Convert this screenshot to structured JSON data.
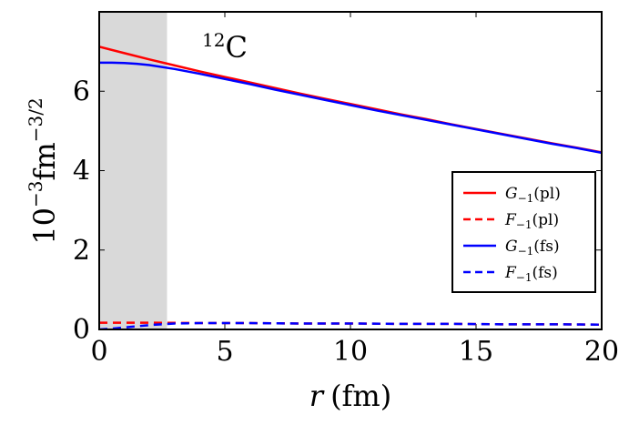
{
  "chart_data": {
    "type": "line",
    "annotation": "12C",
    "annotation_sup": "12",
    "annotation_base": "C",
    "xlabel": "r (fm)",
    "xlabel_var": "r",
    "xlabel_unit": "(fm)",
    "ylabel": "10^-3 fm^-3/2",
    "xlim": [
      0,
      20
    ],
    "ylim": [
      0,
      8
    ],
    "xticks": [
      0,
      5,
      10,
      15,
      20
    ],
    "xtick_labels": [
      "0",
      "5",
      "10",
      "15",
      "20"
    ],
    "yticks": [
      0,
      2,
      4,
      6
    ],
    "ytick_labels": [
      "0",
      "2",
      "4",
      "6"
    ],
    "shaded_region": {
      "x_from": 0,
      "x_to": 2.7,
      "color": "#d9d9d9"
    },
    "legend_position": "right",
    "series": [
      {
        "name": "G_{-1}(pl)",
        "legend_main": "G",
        "legend_sub": "−1",
        "legend_tail": "(pl)",
        "color": "#ff0000",
        "dash": "solid",
        "x": [
          0,
          1,
          2,
          3,
          4,
          5,
          6,
          7,
          8,
          9,
          10,
          11,
          12,
          13,
          14,
          15,
          16,
          17,
          18,
          19,
          20
        ],
        "y": [
          7.12,
          6.96,
          6.8,
          6.65,
          6.5,
          6.36,
          6.22,
          6.08,
          5.94,
          5.81,
          5.68,
          5.55,
          5.42,
          5.3,
          5.17,
          5.05,
          4.93,
          4.81,
          4.69,
          4.58,
          4.46
        ]
      },
      {
        "name": "F_{-1}(pl)",
        "legend_main": "F",
        "legend_sub": "−1",
        "legend_tail": "(pl)",
        "color": "#ff0000",
        "dash": "dashed",
        "x": [
          0,
          2,
          4,
          6,
          8,
          10,
          12,
          14,
          16,
          18,
          20
        ],
        "y": [
          0.17,
          0.17,
          0.16,
          0.16,
          0.15,
          0.15,
          0.14,
          0.14,
          0.13,
          0.13,
          0.12
        ]
      },
      {
        "name": "G_{-1}(fs)",
        "legend_main": "G",
        "legend_sub": "−1",
        "legend_tail": "(fs)",
        "color": "#0000ff",
        "dash": "solid",
        "x": [
          0,
          0.5,
          1,
          1.5,
          2,
          3,
          4,
          5,
          6,
          7,
          8,
          9,
          10,
          11,
          12,
          13,
          14,
          15,
          16,
          17,
          18,
          19,
          20
        ],
        "y": [
          6.72,
          6.72,
          6.71,
          6.69,
          6.66,
          6.56,
          6.44,
          6.31,
          6.18,
          6.04,
          5.91,
          5.78,
          5.65,
          5.52,
          5.4,
          5.28,
          5.16,
          5.04,
          4.92,
          4.8,
          4.68,
          4.57,
          4.45
        ]
      },
      {
        "name": "F_{-1}(fs)",
        "legend_main": "F",
        "legend_sub": "−1",
        "legend_tail": "(fs)",
        "color": "#0000ff",
        "dash": "dashed",
        "x": [
          0,
          0.5,
          1,
          1.5,
          2,
          2.5,
          3,
          4,
          6,
          8,
          10,
          12,
          14,
          16,
          18,
          20
        ],
        "y": [
          0.0,
          0.02,
          0.05,
          0.08,
          0.11,
          0.13,
          0.15,
          0.16,
          0.16,
          0.15,
          0.15,
          0.14,
          0.14,
          0.13,
          0.13,
          0.12
        ]
      }
    ]
  }
}
